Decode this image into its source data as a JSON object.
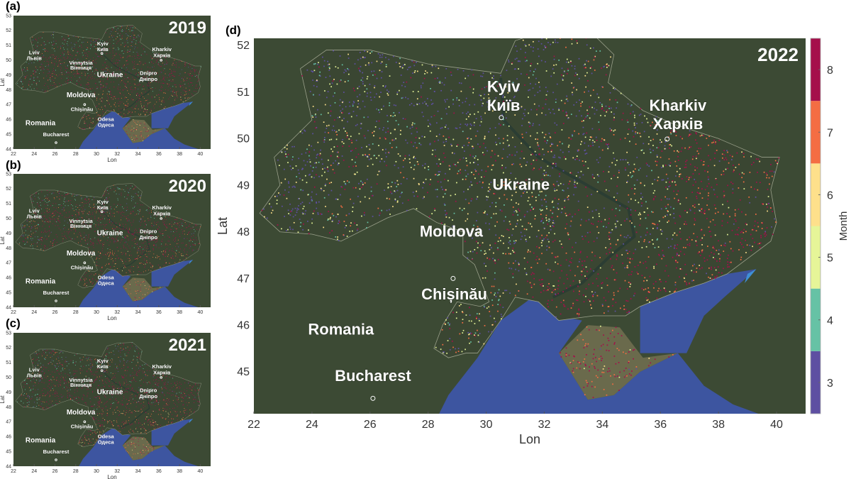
{
  "figure": {
    "panels": [
      {
        "letter": "(a)",
        "year": "2019",
        "style": "historic",
        "seed": 11
      },
      {
        "letter": "(b)",
        "year": "2020",
        "style": "historic",
        "seed": 23
      },
      {
        "letter": "(c)",
        "year": "2021",
        "style": "historic",
        "seed": 37
      },
      {
        "letter": "(d)",
        "year": "2022",
        "style": "war",
        "seed": 51
      }
    ],
    "small_axes": {
      "xlabel": "Lon",
      "ylabel": "Lat",
      "xlim": [
        22,
        41
      ],
      "ylim": [
        44,
        53
      ],
      "xticks": [
        22,
        24,
        26,
        28,
        30,
        32,
        34,
        36,
        38,
        40
      ],
      "yticks": [
        44,
        45,
        46,
        47,
        48,
        49,
        50,
        51,
        52,
        53
      ]
    },
    "large_axes": {
      "xlabel": "Lon",
      "ylabel": "Lat",
      "xlim": [
        22,
        41
      ],
      "ylim": [
        44.1,
        52.15
      ],
      "xticks": [
        22,
        24,
        26,
        28,
        30,
        32,
        34,
        36,
        38,
        40
      ],
      "yticks": [
        45,
        46,
        47,
        48,
        49,
        50,
        51,
        52
      ]
    },
    "small_labels": [
      {
        "text": "Lviv",
        "lon": 24.0,
        "lat": 50.4,
        "big": false
      },
      {
        "text": "Львів",
        "lon": 24.0,
        "lat": 50.0,
        "big": false
      },
      {
        "text": "Kyiv",
        "lon": 30.6,
        "lat": 51.0,
        "big": false
      },
      {
        "text": "Київ",
        "lon": 30.6,
        "lat": 50.6,
        "big": false
      },
      {
        "text": "Kharkiv",
        "lon": 36.3,
        "lat": 50.6,
        "big": false
      },
      {
        "text": "Харків",
        "lon": 36.3,
        "lat": 50.2,
        "big": false
      },
      {
        "text": "Vinnytsia",
        "lon": 28.5,
        "lat": 49.7,
        "big": false
      },
      {
        "text": "Вінниця",
        "lon": 28.5,
        "lat": 49.35,
        "big": false
      },
      {
        "text": "Ukraine",
        "lon": 31.3,
        "lat": 48.85,
        "big": true
      },
      {
        "text": "Dnipro",
        "lon": 35.0,
        "lat": 49.0,
        "big": false
      },
      {
        "text": "Дніпро",
        "lon": 35.0,
        "lat": 48.6,
        "big": false
      },
      {
        "text": "Moldova",
        "lon": 28.5,
        "lat": 47.5,
        "big": true
      },
      {
        "text": "Chișinău",
        "lon": 28.6,
        "lat": 46.55,
        "big": false
      },
      {
        "text": "Odesa",
        "lon": 30.9,
        "lat": 45.9,
        "big": false
      },
      {
        "text": "Одеса",
        "lon": 30.9,
        "lat": 45.5,
        "big": false
      },
      {
        "text": "Romania",
        "lon": 24.6,
        "lat": 45.6,
        "big": true
      },
      {
        "text": "Bucharest",
        "lon": 26.1,
        "lat": 44.85,
        "big": false
      }
    ],
    "large_labels": [
      {
        "text": "Kyiv",
        "lon": 30.6,
        "lat": 51.0,
        "big": true
      },
      {
        "text": "Київ",
        "lon": 30.6,
        "lat": 50.6,
        "big": true
      },
      {
        "text": "Kharkiv",
        "lon": 36.6,
        "lat": 50.6,
        "big": true
      },
      {
        "text": "Харків",
        "lon": 36.6,
        "lat": 50.2,
        "big": true
      },
      {
        "text": "Ukraine",
        "lon": 31.2,
        "lat": 48.9,
        "big": true
      },
      {
        "text": "Moldova",
        "lon": 28.8,
        "lat": 47.9,
        "big": true
      },
      {
        "text": "Chișinău",
        "lon": 28.9,
        "lat": 46.55,
        "big": true
      },
      {
        "text": "Romania",
        "lon": 25.0,
        "lat": 45.8,
        "big": true
      },
      {
        "text": "Bucharest",
        "lon": 26.1,
        "lat": 44.8,
        "big": true
      }
    ],
    "markers": [
      {
        "name": "Kyiv",
        "lon": 30.52,
        "lat": 50.45
      },
      {
        "name": "Chișinău",
        "lon": 28.86,
        "lat": 47.0
      },
      {
        "name": "Bucharest",
        "lon": 26.1,
        "lat": 44.43
      },
      {
        "name": "Kharkiv",
        "lon": 36.23,
        "lat": 49.99
      }
    ],
    "colorbar": {
      "label": "Month",
      "ticks": [
        3,
        4,
        5,
        6,
        7,
        8
      ],
      "colors": {
        "3": "#5E4FA2",
        "4": "#66C2A5",
        "5": "#E6F598",
        "6": "#FEE08B",
        "7": "#F46D43",
        "8": "#A50F4B"
      }
    },
    "colors": {
      "land": "#3c4a34",
      "sea": "#3d55a0",
      "azov_shallow": "#3f8fd6"
    }
  }
}
